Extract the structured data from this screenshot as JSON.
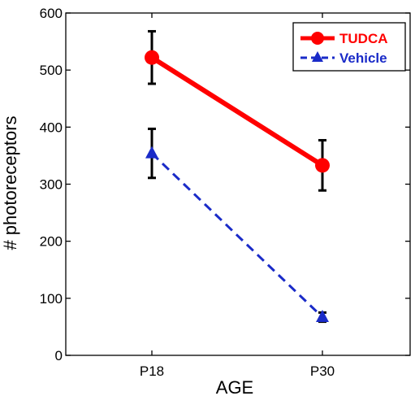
{
  "chart_data": {
    "type": "line",
    "xlabel": "AGE",
    "ylabel": "# photoreceptors",
    "categories": [
      "P18",
      "P30"
    ],
    "ylim": [
      0,
      600
    ],
    "yticks": [
      "0",
      "100",
      "200",
      "300",
      "400",
      "500",
      "600"
    ],
    "grid": false,
    "legend_position": "top-right",
    "series": [
      {
        "name": "TUDCA",
        "values": [
          522,
          333
        ],
        "errors": [
          46,
          44
        ],
        "color": "#ff0000",
        "marker": "circle",
        "line": "solid"
      },
      {
        "name": "Vehicle",
        "values": [
          354,
          67
        ],
        "errors": [
          43,
          8
        ],
        "color": "#1a2bc8",
        "marker": "triangle",
        "line": "dashed"
      }
    ]
  }
}
